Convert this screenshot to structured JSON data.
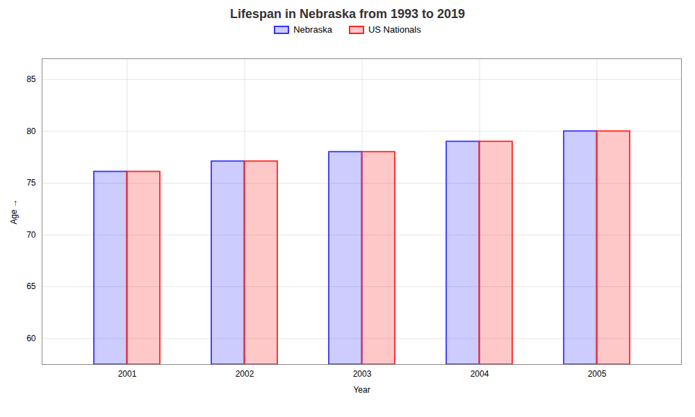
{
  "chart_data": {
    "type": "bar",
    "title": "Lifespan in Nebraska from 1993 to 2019",
    "xlabel": "Year",
    "ylabel": "Age",
    "categories": [
      "2001",
      "2002",
      "2003",
      "2004",
      "2005"
    ],
    "series": [
      {
        "name": "Nebraska",
        "color": "#3333ff",
        "values": [
          76.1,
          77.1,
          78.0,
          79.0,
          80.0
        ]
      },
      {
        "name": "US Nationals",
        "color": "#ff2222",
        "values": [
          76.1,
          77.1,
          78.0,
          79.0,
          80.0
        ]
      }
    ],
    "ylim": [
      57.5,
      87
    ],
    "yticks": [
      60,
      65,
      70,
      75,
      80,
      85
    ],
    "grid": true,
    "legend": "top"
  }
}
